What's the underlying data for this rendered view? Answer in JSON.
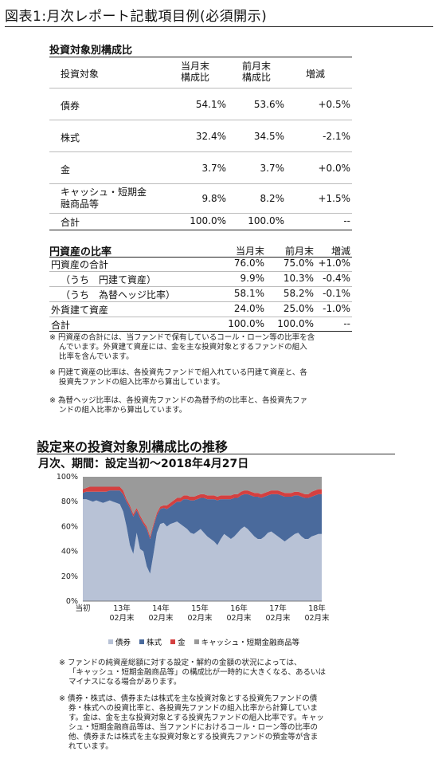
{
  "title": "図表1:月次レポート記載項目例(必須開示)",
  "table1": {
    "heading": "投資対象別構成比",
    "col_label": "投資対象",
    "col_current": [
      "当月末",
      "構成比"
    ],
    "col_previous": [
      "前月末",
      "構成比"
    ],
    "col_change": "増減",
    "rows": [
      {
        "label": [
          "債券"
        ],
        "current": "54.1%",
        "previous": "53.6%",
        "change": "+0.5%"
      },
      {
        "label": [
          "株式"
        ],
        "current": "32.4%",
        "previous": "34.5%",
        "change": "-2.1%"
      },
      {
        "label": [
          "金"
        ],
        "current": "3.7%",
        "previous": "3.7%",
        "change": "+0.0%"
      },
      {
        "label": [
          "キャッシュ・短期金",
          "融商品等"
        ],
        "current": "9.8%",
        "previous": "8.2%",
        "change": "+1.5%"
      },
      {
        "label": [
          "合計"
        ],
        "current": "100.0%",
        "previous": "100.0%",
        "change": "--"
      }
    ]
  },
  "table2": {
    "heading": "円資産の比率",
    "col_current": "当月末",
    "col_previous": "前月末",
    "col_change": "増減",
    "rows": [
      {
        "label": "円資産の合計",
        "current": "76.0%",
        "previous": "75.0%",
        "change": "+1.0%"
      },
      {
        "label": "（うち　円建て資産）",
        "current": "9.9%",
        "previous": "10.3%",
        "change": "-0.4%"
      },
      {
        "label": "（うち　為替ヘッジ比率）",
        "current": "58.1%",
        "previous": "58.2%",
        "change": "-0.1%"
      },
      {
        "label": "外貨建て資産",
        "current": "24.0%",
        "previous": "25.0%",
        "change": "-1.0%"
      },
      {
        "label": "合計",
        "current": "100.0%",
        "previous": "100.0%",
        "change": "--"
      }
    ]
  },
  "notes_top": [
    [
      "※ 円資産の合計には、当ファンドで保有しているコール・ローン等の比率を含",
      "んでいます。外貨建て資産には、金を主な投資対象とするファンドの組入",
      "比率を含んでいます。"
    ],
    [
      "※ 円建て資産の比率は、各投資先ファンドで組入れている円建て資産と、各",
      "投資先ファンドの組入比率から算出しています。"
    ],
    [
      "※ 為替ヘッジ比率は、各投資先ファンドの為替予約の比率と、各投資先ファ",
      "ンドの組入比率から算出しています。"
    ]
  ],
  "section": {
    "title": "設定来の投資対象別構成比の推移",
    "subtitle": "月次、期間：設定当初～2018年4月27日"
  },
  "chart_data": {
    "type": "area",
    "stacked": true,
    "y_ticks": [
      "100%",
      "80%",
      "60%",
      "40%",
      "20%",
      "0%"
    ],
    "ylim": [
      0,
      100
    ],
    "x_labels": [
      [
        "当初",
        ""
      ],
      [
        "13年",
        "02月末"
      ],
      [
        "14年",
        "02月末"
      ],
      [
        "15年",
        "02月末"
      ],
      [
        "16年",
        "02月末"
      ],
      [
        "17年",
        "02月末"
      ],
      [
        "18年",
        "02月末"
      ]
    ],
    "x": [
      0,
      1,
      2,
      3,
      4,
      5,
      6,
      7,
      8,
      9,
      10,
      11,
      12,
      13,
      14,
      15,
      16,
      17,
      18,
      19,
      20,
      21,
      22,
      23,
      24,
      25,
      26,
      27,
      28,
      29,
      30,
      31,
      32,
      33,
      34,
      35,
      36,
      37,
      38,
      39,
      40,
      41,
      42,
      43,
      44,
      45,
      46,
      47,
      48,
      49,
      50,
      51,
      52,
      53,
      54,
      55,
      56,
      57,
      58,
      59,
      60,
      61,
      62,
      63,
      64,
      65,
      66,
      67,
      68,
      69,
      70,
      71
    ],
    "series": [
      {
        "name": "債券",
        "color": "#b8c2d6",
        "values": [
          82,
          82,
          81,
          80,
          81,
          80,
          79,
          80,
          81,
          80,
          79,
          78,
          72,
          60,
          45,
          38,
          55,
          42,
          40,
          28,
          22,
          38,
          55,
          62,
          63,
          60,
          62,
          63,
          64,
          62,
          60,
          58,
          55,
          54,
          56,
          58,
          55,
          52,
          50,
          48,
          45,
          50,
          54,
          52,
          50,
          52,
          55,
          58,
          60,
          58,
          55,
          52,
          50,
          50,
          52,
          55,
          56,
          54,
          52,
          50,
          48,
          50,
          52,
          54,
          55,
          52,
          50,
          50,
          52,
          53,
          54,
          54
        ]
      },
      {
        "name": "株式",
        "color": "#4a6a9c",
        "values": [
          5,
          6,
          7,
          8,
          7,
          8,
          9,
          8,
          8,
          9,
          10,
          11,
          14,
          20,
          30,
          30,
          18,
          25,
          22,
          30,
          28,
          22,
          14,
          12,
          12,
          14,
          14,
          15,
          16,
          18,
          22,
          24,
          26,
          27,
          26,
          25,
          28,
          30,
          32,
          34,
          36,
          32,
          28,
          30,
          32,
          31,
          28,
          27,
          26,
          28,
          30,
          32,
          34,
          33,
          32,
          30,
          30,
          32,
          34,
          35,
          36,
          34,
          32,
          31,
          30,
          32,
          33,
          33,
          32,
          32,
          32,
          32
        ]
      },
      {
        "name": "金",
        "color": "#d44040",
        "values": [
          3,
          3,
          4,
          4,
          4,
          4,
          4,
          4,
          3,
          3,
          3,
          3,
          3,
          2,
          2,
          2,
          2,
          2,
          2,
          2,
          2,
          2,
          2,
          2,
          2,
          3,
          3,
          3,
          3,
          3,
          3,
          3,
          3,
          3,
          3,
          3,
          3,
          3,
          3,
          3,
          3,
          3,
          3,
          3,
          3,
          3,
          3,
          3,
          3,
          3,
          3,
          3,
          3,
          3,
          3,
          3,
          3,
          3,
          3,
          3,
          3,
          3,
          3,
          3,
          3,
          3,
          3,
          3,
          4,
          4,
          4,
          4
        ]
      },
      {
        "name": "キャッシュ・短期金融商品等",
        "color": "#9a9a9a",
        "values": [
          10,
          9,
          8,
          8,
          8,
          8,
          8,
          8,
          8,
          8,
          8,
          8,
          11,
          18,
          23,
          30,
          25,
          31,
          36,
          40,
          48,
          38,
          29,
          24,
          23,
          23,
          21,
          19,
          17,
          17,
          15,
          15,
          16,
          16,
          15,
          14,
          14,
          15,
          15,
          15,
          16,
          15,
          15,
          15,
          15,
          14,
          14,
          12,
          11,
          11,
          12,
          13,
          13,
          14,
          13,
          12,
          11,
          11,
          11,
          12,
          13,
          13,
          13,
          12,
          12,
          13,
          14,
          14,
          12,
          11,
          10,
          10
        ]
      }
    ]
  },
  "notes_bottom": [
    [
      "※ ファンドの純資産総額に対する設定・解約の金額の状況によっては、",
      "「キャッシュ・短期金融商品等」の構成比が一時的に大きくなる、あるいは",
      "マイナスになる場合があります。"
    ],
    [
      "※ 債券・株式は、債券または株式を主な投資対象とする投資先ファンドの債",
      "券・株式への投資比率と、各投資先ファンドの組入比率から計算していま",
      "す。金は、金を主な投資対象とする投資先ファンドの組入比率です。キャッ",
      "シュ・短期金融商品等は、当ファンドにおけるコール・ローン等の比率の",
      "他、債券または株式を主な投資対象とする投資先ファンドの預金等が含ま",
      "れています。"
    ]
  ]
}
